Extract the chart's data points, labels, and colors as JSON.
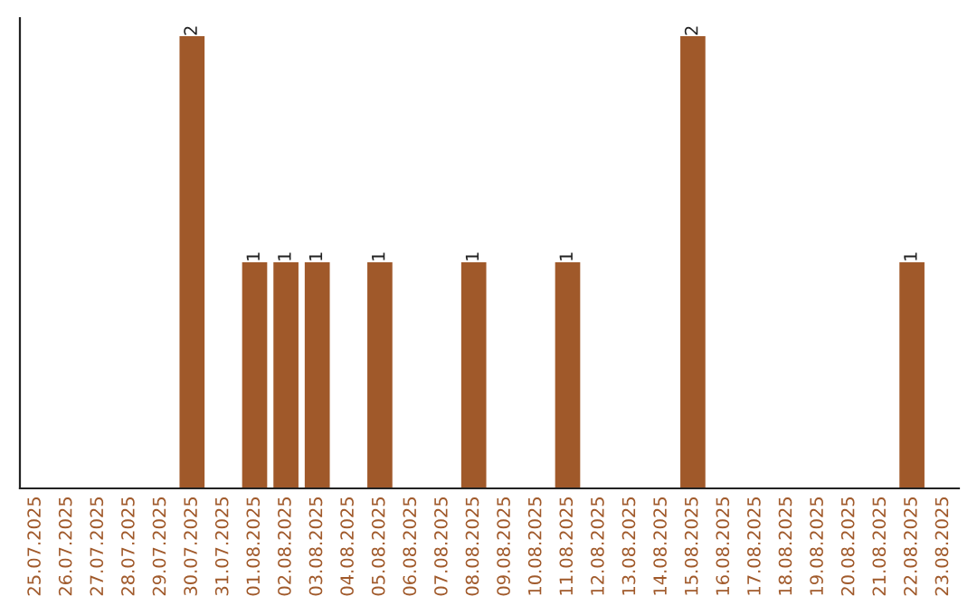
{
  "chart_data": {
    "type": "bar",
    "categories": [
      "25.07.2025",
      "26.07.2025",
      "27.07.2025",
      "28.07.2025",
      "29.07.2025",
      "30.07.2025",
      "31.07.2025",
      "01.08.2025",
      "02.08.2025",
      "03.08.2025",
      "04.08.2025",
      "05.08.2025",
      "06.08.2025",
      "07.08.2025",
      "08.08.2025",
      "09.08.2025",
      "10.08.2025",
      "11.08.2025",
      "12.08.2025",
      "13.08.2025",
      "14.08.2025",
      "15.08.2025",
      "16.08.2025",
      "17.08.2025",
      "18.08.2025",
      "19.08.2025",
      "20.08.2025",
      "21.08.2025",
      "22.08.2025",
      "23.08.2025"
    ],
    "values": [
      0,
      0,
      0,
      0,
      0,
      2,
      0,
      1,
      1,
      1,
      0,
      1,
      0,
      0,
      1,
      0,
      0,
      1,
      0,
      0,
      0,
      2,
      0,
      0,
      0,
      0,
      0,
      0,
      1,
      0
    ],
    "color": "#a0592a",
    "ylim": [
      0,
      2.08
    ],
    "value_labels": [
      null,
      null,
      null,
      null,
      null,
      "2",
      null,
      "1",
      "1",
      "1",
      null,
      "1",
      null,
      null,
      "1",
      null,
      null,
      "1",
      null,
      null,
      null,
      "2",
      null,
      null,
      null,
      null,
      null,
      null,
      "1",
      null
    ],
    "tick_labels": "x",
    "legend": false
  }
}
